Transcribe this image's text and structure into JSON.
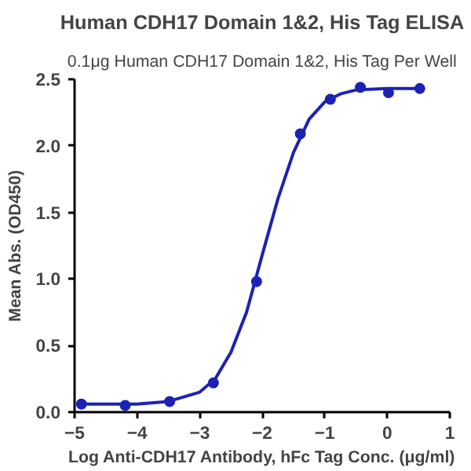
{
  "chart_data": {
    "type": "scatter",
    "title": "Human CDH17 Domain 1&2, His Tag ELISA",
    "subtitle": "0.1μg Human CDH17 Domain 1&2, His Tag Per Well",
    "xlabel": "Log Anti-CDH17 Antibody, hFc Tag Conc. (μg/ml)",
    "ylabel": "Mean Abs. (OD450)",
    "xlim": [
      -5,
      1
    ],
    "xticks": [
      -5,
      -4,
      -3,
      -2,
      -1,
      0,
      1
    ],
    "ylim": [
      0,
      2.5
    ],
    "yticks": [
      {
        "value": 0,
        "label": "0.0"
      },
      {
        "value": 0.5,
        "label": "0.5"
      },
      {
        "value": 1,
        "label": "1.0"
      },
      {
        "value": 1.5,
        "label": "1.5"
      },
      {
        "value": 2,
        "label": "2.0"
      },
      {
        "value": 2.5,
        "label": "2.5"
      }
    ],
    "grid": false,
    "series": [
      {
        "marker": "circle",
        "color": "#1c22b4",
        "x": [
          -4.89,
          -4.19,
          -3.48,
          -2.78,
          -2.09,
          -1.39,
          -0.91,
          -0.43,
          0.02,
          0.52
        ],
        "values": [
          0.06,
          0.05,
          0.08,
          0.22,
          0.98,
          2.09,
          2.35,
          2.44,
          2.4,
          2.43
        ]
      },
      {
        "type": "line",
        "line_style": "solid",
        "color": "#1c22b4",
        "x": [
          -4.89,
          -4,
          -3.5,
          -3,
          -2.75,
          -2.5,
          -2.25,
          -2,
          -1.75,
          -1.5,
          -1.25,
          -1,
          -0.75,
          -0.5,
          0,
          0.52
        ],
        "values": [
          0.06,
          0.06,
          0.08,
          0.15,
          0.25,
          0.45,
          0.75,
          1.18,
          1.6,
          1.95,
          2.2,
          2.33,
          2.39,
          2.42,
          2.43,
          2.43
        ]
      }
    ]
  }
}
